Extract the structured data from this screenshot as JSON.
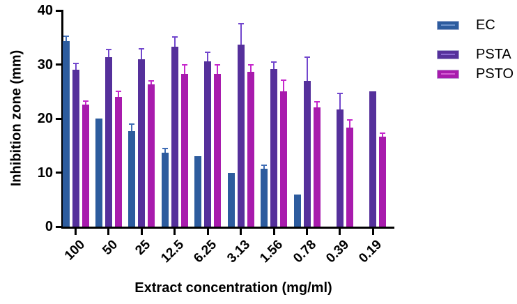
{
  "chart_data": {
    "type": "bar",
    "title": "",
    "xlabel": "Extract concentration (mg/ml)",
    "ylabel": "Inhibition zone (mm)",
    "ylim": [
      0,
      40
    ],
    "yticks": [
      0,
      10,
      20,
      30,
      40
    ],
    "grid": false,
    "legend_position": "right-top",
    "categories": [
      "100",
      "50",
      "25",
      "12.5",
      "6.25",
      "3.13",
      "1.56",
      "0.78",
      "0.39",
      "0.19"
    ],
    "series": [
      {
        "name": "EC",
        "color": "#2d5c9e",
        "error_color": "#3f6db5",
        "legend_line_color": "#6e93cc",
        "values": [
          34.3,
          20,
          17.7,
          13.7,
          13,
          10,
          10.7,
          6,
          null,
          null
        ],
        "errors": [
          0.9,
          0,
          1.3,
          0.7,
          0,
          0,
          0.6,
          0,
          null,
          null
        ]
      },
      {
        "name": "PSTA",
        "color": "#55309b",
        "error_color": "#7247cd",
        "legend_line_color": "#8a6ad2",
        "values": [
          29,
          31.4,
          31,
          33.3,
          30.6,
          33.7,
          29.1,
          27,
          21.7,
          25
        ],
        "errors": [
          1.2,
          1.4,
          1.9,
          1.8,
          1.6,
          3.9,
          1.3,
          4.4,
          2.9,
          0
        ]
      },
      {
        "name": "PSTO",
        "color": "#a81bad",
        "error_color": "#c628cc",
        "legend_line_color": "#d55fd6",
        "values": [
          22.6,
          24,
          26.3,
          28.3,
          28.3,
          28.6,
          25,
          22.1,
          18.3,
          16.6
        ],
        "errors": [
          0.6,
          1,
          0.7,
          1.7,
          1.6,
          1.3,
          2.1,
          1,
          1.5,
          0.7
        ]
      }
    ]
  }
}
